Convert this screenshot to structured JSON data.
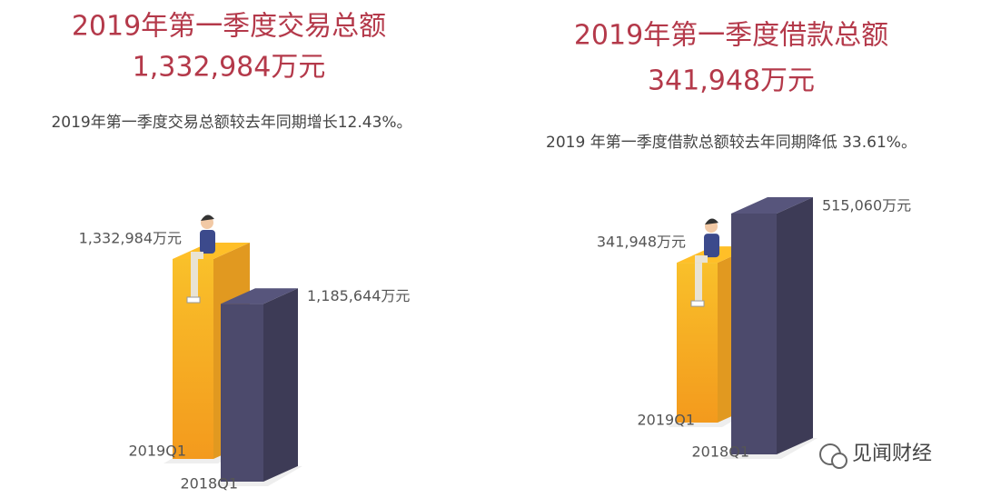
{
  "chart_data": [
    {
      "type": "bar",
      "title": "2019年第一季度交易总额",
      "headline": "1,332,984万元",
      "subtitle": "2019年第一季度交易总额较去年同期增长12.43%。",
      "categories": [
        "2019Q1",
        "2018Q1"
      ],
      "values": [
        1332984,
        1185644
      ],
      "value_labels": [
        "1,332,984万元",
        "1,185,644万元"
      ],
      "colors": [
        "#f5a623",
        "#4c4a6c"
      ]
    },
    {
      "type": "bar",
      "title": "2019年第一季度借款总额",
      "headline": "341,948万元",
      "subtitle": "2019 年第一季度借款总额较去年同期降低 33.61%。",
      "categories": [
        "2019Q1",
        "2018Q1"
      ],
      "values": [
        341948,
        515060
      ],
      "value_labels": [
        "341,948万元",
        "515,060万元"
      ],
      "colors": [
        "#f5a623",
        "#4c4a6c"
      ]
    }
  ],
  "watermark": "见闻财经"
}
